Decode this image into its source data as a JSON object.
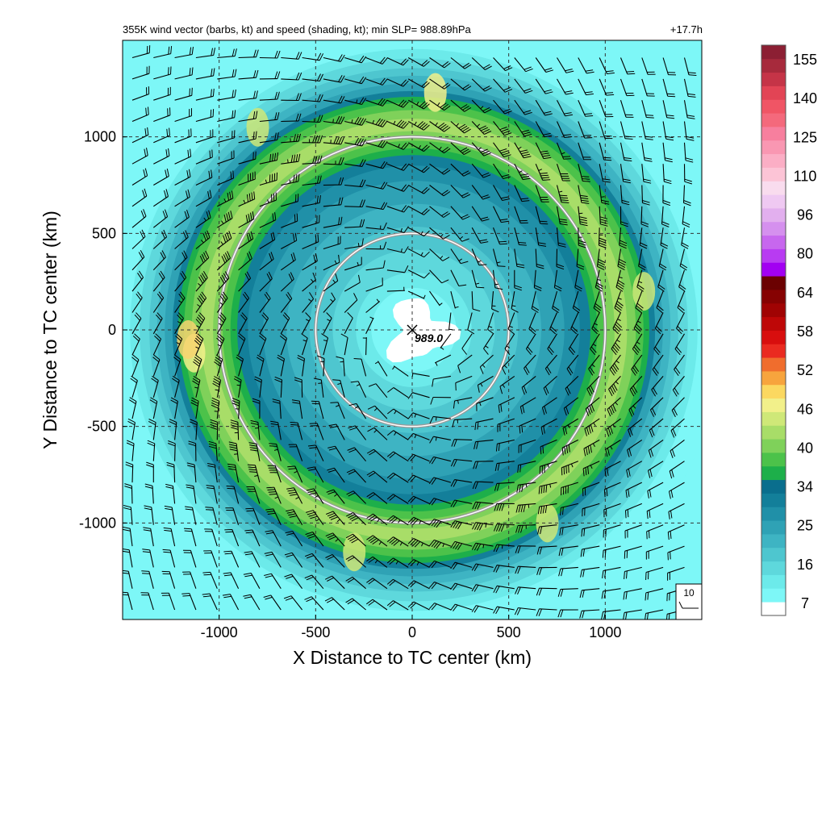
{
  "figure": {
    "title": "355K wind vector (barbs, kt) and speed (shading, kt); min SLP= 988.89hPa",
    "time_label": "+17.7h",
    "center_label": "989.0",
    "reference_barb_label": "10"
  },
  "chart_data": {
    "type": "heatmap",
    "title": "355K wind vector (barbs, kt) and speed (shading, kt); min SLP= 988.89hPa",
    "xlabel": "X Distance to TC center (km)",
    "ylabel": "Y Distance to TC center (km)",
    "xlim": [
      -1500,
      1500
    ],
    "ylim": [
      -1500,
      1500
    ],
    "x_ticks": [
      -1000,
      -500,
      0,
      500,
      1000
    ],
    "y_ticks": [
      -1000,
      -500,
      0,
      500,
      1000
    ],
    "x_tick_labels": [
      "-1000",
      "-500",
      "0",
      "500",
      "1000"
    ],
    "y_tick_labels": [
      "-1000",
      "-500",
      "0",
      "500",
      "1000"
    ],
    "grid": true,
    "grid_style": "dashed",
    "range_rings_km": [
      500,
      1000
    ],
    "center": {
      "x": 0,
      "y": 0,
      "marker": "x",
      "value_label": "989.0"
    },
    "wind_field": {
      "description": "cyclonic counter-clockwise outflow ring",
      "ring_max_radius_km": 1100,
      "ring_max_speed_kt": 45,
      "calm_center_radius_km": 200,
      "far_field_speed_kt": 15
    },
    "colorbar": {
      "tick_labels": [
        "7",
        "16",
        "25",
        "34",
        "40",
        "46",
        "52",
        "58",
        "64",
        "80",
        "96",
        "110",
        "125",
        "140",
        "155"
      ],
      "colors": [
        "#ffffff",
        "#7df7f7",
        "#6ceaea",
        "#5ed8dc",
        "#4ec6cf",
        "#3eb4c3",
        "#2fa2b5",
        "#2090a8",
        "#137f9a",
        "#0a6e8d",
        "#1daf4a",
        "#4cc24a",
        "#7fd15a",
        "#a8dd68",
        "#cfe878",
        "#f2f08a",
        "#fbd860",
        "#f7a43d",
        "#f06d2d",
        "#ea2a20",
        "#d80e0e",
        "#be0707",
        "#a00303",
        "#860202",
        "#6b0101",
        "#a200f2",
        "#b83bf2",
        "#c767ee",
        "#d590ee",
        "#e2afee",
        "#efc9f2",
        "#f9dcee",
        "#fcc4d6",
        "#fbaec5",
        "#f997b2",
        "#f77f9e",
        "#f4697c",
        "#f05565",
        "#e24455",
        "#c53447",
        "#a72a3c",
        "#8c1f33"
      ]
    },
    "colors": {
      "ring_outline": "#9a9a9a",
      "barb": "#000000",
      "axis": "#000000",
      "grid": "#333333"
    }
  }
}
